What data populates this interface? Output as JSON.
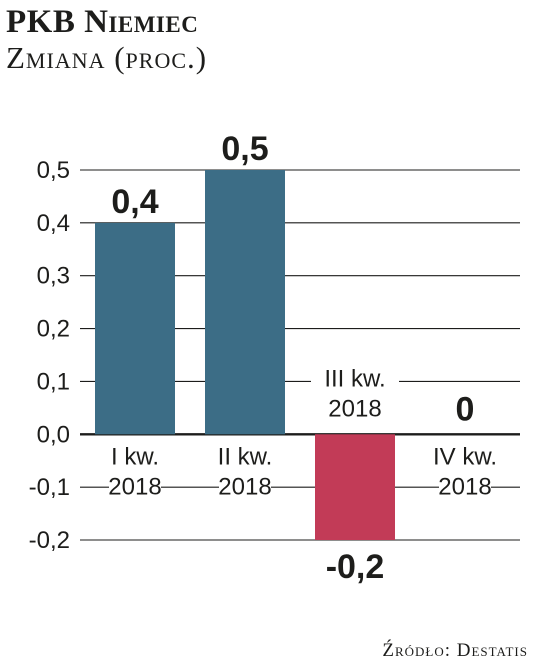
{
  "header": {
    "title": "PKB Niemiec",
    "subtitle": "Zmiana (proc.)"
  },
  "footer": {
    "source": "Źródło: Destatis"
  },
  "colors": {
    "positive_bar": "#3c6d86",
    "negative_bar": "#c23b57",
    "gridline": "#1d1d1b"
  },
  "chart_data": {
    "type": "bar",
    "title": "PKB Niemiec",
    "subtitle": "Zmiana (proc.)",
    "categories": [
      [
        "I kw.",
        "2018"
      ],
      [
        "II kw.",
        "2018"
      ],
      [
        "III kw.",
        "2018"
      ],
      [
        "IV kw.",
        "2018"
      ]
    ],
    "values": [
      0.4,
      0.5,
      -0.2,
      0
    ],
    "data_labels": [
      "0,4",
      "0,5",
      "-0,2",
      "0"
    ],
    "ylim": [
      -0.2,
      0.5
    ],
    "yticks": [
      0.5,
      0.4,
      0.3,
      0.2,
      0.1,
      0.0,
      -0.1,
      -0.2
    ],
    "ytick_labels": [
      "0,5",
      "0,4",
      "0,3",
      "0,2",
      "0,1",
      "0,0",
      "-0,1",
      "-0,2"
    ],
    "grid": true,
    "legend": "none"
  }
}
